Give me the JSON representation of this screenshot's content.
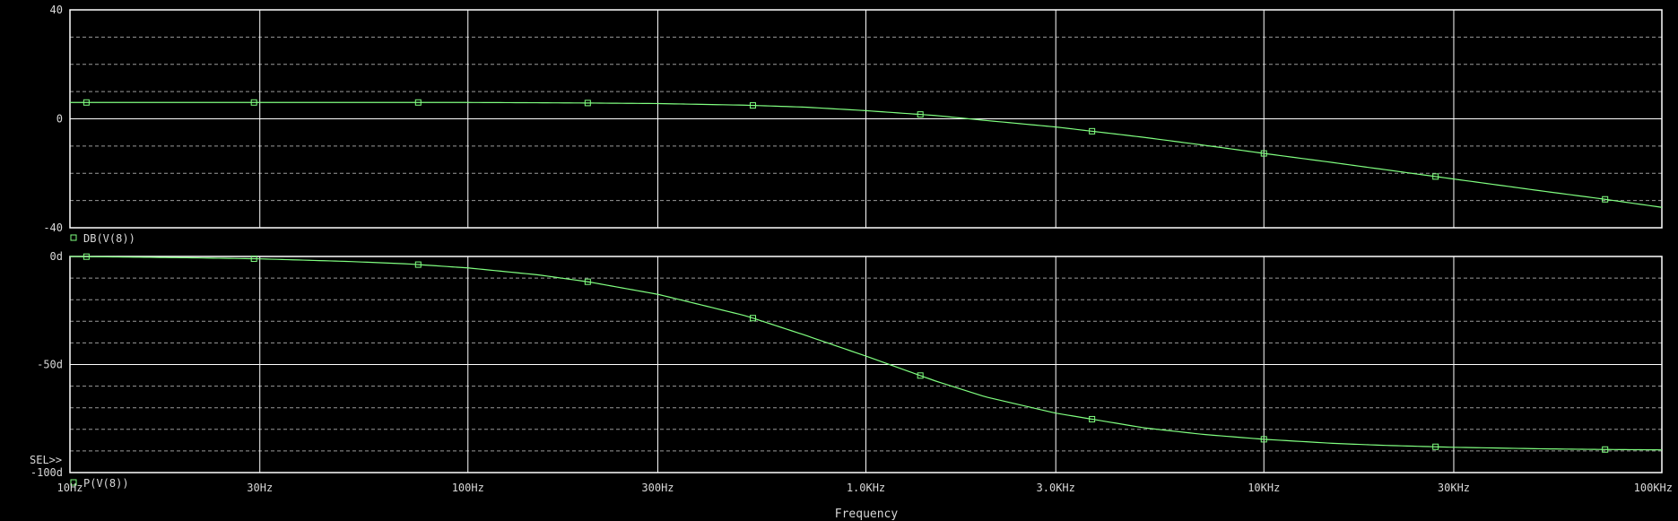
{
  "colors": {
    "background": "#000000",
    "frame": "#ffffff",
    "grid_major": "#ffffff",
    "grid_minor": "#9a9a9a",
    "trace": "#80ff80",
    "text": "#d8d8d8"
  },
  "x_axis": {
    "label": "Frequency",
    "scale": "log",
    "range_hz": [
      10,
      100000
    ],
    "ticks": [
      {
        "value": 10,
        "label": "10Hz"
      },
      {
        "value": 30,
        "label": "30Hz"
      },
      {
        "value": 100,
        "label": "100Hz"
      },
      {
        "value": 300,
        "label": "300Hz"
      },
      {
        "value": 1000,
        "label": "1.0KHz"
      },
      {
        "value": 3000,
        "label": "3.0KHz"
      },
      {
        "value": 10000,
        "label": "10KHz"
      },
      {
        "value": 30000,
        "label": "30KHz"
      },
      {
        "value": 100000,
        "label": "100KHz"
      }
    ]
  },
  "selector_label": "SEL>>",
  "chart_data": [
    {
      "type": "line",
      "x_scale": "log",
      "ylim": [
        -40,
        40
      ],
      "y_ticks": [
        {
          "value": 40,
          "label": "40"
        },
        {
          "value": 0,
          "label": "0"
        },
        {
          "value": -40,
          "label": "-40"
        }
      ],
      "y_minor_grid": [
        30,
        20,
        10,
        -10,
        -20,
        -30
      ],
      "grid": true,
      "legend": "bottom-left",
      "series": [
        {
          "name": "DB(V(8))",
          "x": [
            10,
            20,
            30,
            50,
            70,
            100,
            150,
            200,
            300,
            500,
            700,
            1000,
            1500,
            2000,
            3000,
            5000,
            7000,
            10000,
            15000,
            20000,
            30000,
            50000,
            70000,
            100000
          ],
          "y": [
            6.0,
            6.0,
            6.0,
            6.0,
            6.0,
            6.0,
            5.9,
            5.8,
            5.6,
            5.0,
            4.3,
            3.0,
            1.2,
            -0.6,
            -3.0,
            -6.8,
            -9.6,
            -12.7,
            -16.1,
            -18.6,
            -22.1,
            -26.5,
            -29.3,
            -32.5
          ],
          "marker_x": [
            11,
            29,
            75,
            200,
            520,
            1370,
            3700,
            10000,
            27000,
            72000
          ]
        }
      ]
    },
    {
      "type": "line",
      "x_scale": "log",
      "ylim": [
        -100,
        0
      ],
      "y_ticks": [
        {
          "value": 0,
          "label": "0d"
        },
        {
          "value": -50,
          "label": "-50d"
        },
        {
          "value": -100,
          "label": "-100d"
        }
      ],
      "y_minor_grid": [
        -10,
        -20,
        -30,
        -40,
        -60,
        -70,
        -80,
        -90
      ],
      "grid": true,
      "legend": "bottom-left",
      "series": [
        {
          "name": "P(V(8))",
          "x": [
            10,
            20,
            30,
            50,
            70,
            100,
            150,
            200,
            300,
            500,
            700,
            1000,
            1500,
            2000,
            3000,
            5000,
            7000,
            10000,
            15000,
            20000,
            30000,
            50000,
            70000,
            100000
          ],
          "y": [
            0,
            -0.6,
            -1.1,
            -2.3,
            -3.4,
            -5.3,
            -8.5,
            -11.7,
            -17.5,
            -27.5,
            -36.3,
            -46.1,
            -57.7,
            -65.0,
            -72.5,
            -79.3,
            -82.3,
            -84.6,
            -86.5,
            -87.4,
            -88.3,
            -89.0,
            -89.3,
            -89.5
          ],
          "marker_x": [
            11,
            29,
            75,
            200,
            520,
            1370,
            3700,
            10000,
            27000,
            72000
          ]
        }
      ]
    }
  ]
}
